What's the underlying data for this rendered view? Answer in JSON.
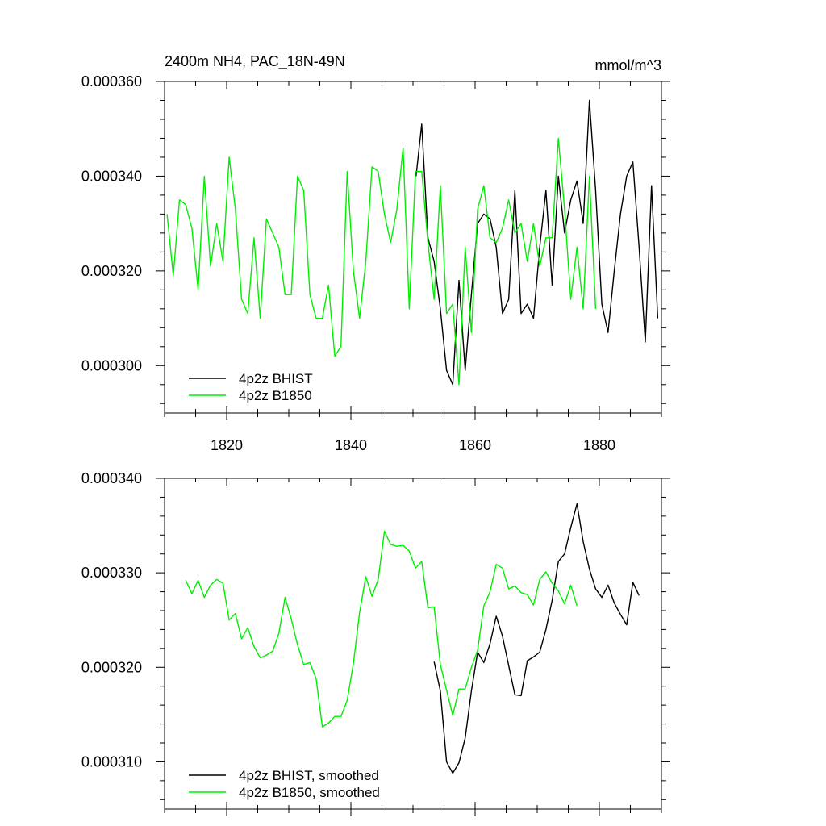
{
  "colors": {
    "bhist": "#000000",
    "b1850": "#00ee00",
    "axis": "#000000",
    "background": "#ffffff"
  },
  "chart_data": [
    {
      "type": "line",
      "title": "2400m NH4, PAC_18N-49N",
      "units": "mmol/m^3",
      "xlim": [
        1810,
        1890
      ],
      "ylim": [
        0.00029,
        0.00036
      ],
      "x_ticks": [
        1820,
        1840,
        1860,
        1880
      ],
      "x_tick_labels": [
        "1820",
        "1840",
        "1860",
        "1880"
      ],
      "y_ticks": [
        0.0003,
        0.00032,
        0.00034,
        0.00036
      ],
      "y_tick_labels": [
        "0.000300",
        "0.000320",
        "0.000340",
        "0.000360"
      ],
      "grid": false,
      "legend_position": "bottom-left",
      "series": [
        {
          "name": "4p2z BHIST",
          "color": "#000000",
          "x": [
            1850.5,
            1851.4,
            1852.4,
            1853.4,
            1854.4,
            1855.4,
            1856.4,
            1857.4,
            1858.4,
            1859.4,
            1860.4,
            1861.4,
            1862.4,
            1863.4,
            1864.4,
            1865.4,
            1866.4,
            1867.4,
            1868.4,
            1869.4,
            1870.4,
            1871.4,
            1872.4,
            1873.4,
            1874.4,
            1875.4,
            1876.4,
            1877.4,
            1878.4,
            1879.4,
            1880.4,
            1881.4,
            1882.4,
            1883.4,
            1884.4,
            1885.4,
            1886.4,
            1887.4,
            1888.4,
            1889.4
          ],
          "y": [
            0.00034,
            0.000351,
            0.000327,
            0.000322,
            0.000312,
            0.000299,
            0.000296,
            0.000318,
            0.000299,
            0.000315,
            0.00033,
            0.000332,
            0.000331,
            0.000325,
            0.000311,
            0.000314,
            0.000337,
            0.000311,
            0.000313,
            0.00031,
            0.000325,
            0.000337,
            0.000317,
            0.00034,
            0.000328,
            0.000335,
            0.000339,
            0.00033,
            0.000356,
            0.000337,
            0.000313,
            0.000307,
            0.00032,
            0.000332,
            0.00034,
            0.000343,
            0.000325,
            0.000305,
            0.000338,
            0.00031
          ]
        },
        {
          "name": "4p2z B1850",
          "color": "#00ee00",
          "x": [
            1810.4,
            1811.4,
            1812.4,
            1813.4,
            1814.4,
            1815.4,
            1816.4,
            1817.4,
            1818.4,
            1819.4,
            1820.4,
            1821.4,
            1822.4,
            1823.4,
            1824.4,
            1825.4,
            1826.4,
            1827.4,
            1828.4,
            1829.4,
            1830.4,
            1831.4,
            1832.4,
            1833.4,
            1834.4,
            1835.4,
            1836.4,
            1837.4,
            1838.4,
            1839.4,
            1840.4,
            1841.4,
            1842.4,
            1843.4,
            1844.4,
            1845.4,
            1846.4,
            1847.4,
            1848.4,
            1849.4,
            1850.4,
            1851.4,
            1852.4,
            1853.4,
            1854.4,
            1855.4,
            1856.4,
            1857.4,
            1858.4,
            1859.4,
            1860.4,
            1861.4,
            1862.4,
            1863.4,
            1864.4,
            1865.4,
            1866.4,
            1867.4,
            1868.4,
            1869.4,
            1870.4,
            1871.4,
            1872.4,
            1873.4,
            1874.4,
            1875.4,
            1876.4,
            1877.4,
            1878.4,
            1879.4
          ],
          "y": [
            0.000332,
            0.000319,
            0.000335,
            0.000334,
            0.000329,
            0.000316,
            0.00034,
            0.000321,
            0.00033,
            0.000322,
            0.000344,
            0.000333,
            0.000314,
            0.000311,
            0.000327,
            0.00031,
            0.000331,
            0.000328,
            0.000325,
            0.000315,
            0.000315,
            0.00034,
            0.000337,
            0.000315,
            0.00031,
            0.00031,
            0.000317,
            0.000302,
            0.000304,
            0.000341,
            0.00032,
            0.00031,
            0.000322,
            0.000342,
            0.000341,
            0.000332,
            0.000326,
            0.000333,
            0.000346,
            0.000312,
            0.000341,
            0.000341,
            0.000326,
            0.000314,
            0.000338,
            0.000311,
            0.000313,
            0.000296,
            0.000325,
            0.000307,
            0.000333,
            0.000338,
            0.000327,
            0.000326,
            0.000329,
            0.000335,
            0.000328,
            0.00033,
            0.000322,
            0.00033,
            0.000321,
            0.000327,
            0.000327,
            0.000348,
            0.000333,
            0.000314,
            0.000325,
            0.000312,
            0.00034,
            0.000312
          ]
        }
      ]
    },
    {
      "type": "line",
      "xlim": [
        1810,
        1890
      ],
      "ylim": [
        0.000305,
        0.00034
      ],
      "x_ticks": [
        1820,
        1840,
        1860,
        1880
      ],
      "y_ticks": [
        0.00031,
        0.00032,
        0.00033,
        0.00034
      ],
      "y_tick_labels": [
        "0.000310",
        "0.000320",
        "0.000330",
        "0.000340"
      ],
      "grid": false,
      "legend_position": "bottom-left",
      "series": [
        {
          "name": "4p2z BHIST, smoothed",
          "color": "#000000",
          "x": [
            1853.4,
            1854.4,
            1855.4,
            1856.4,
            1857.4,
            1858.4,
            1859.4,
            1860.4,
            1861.4,
            1862.4,
            1863.4,
            1864.4,
            1865.4,
            1866.4,
            1867.4,
            1868.4,
            1869.4,
            1870.4,
            1871.4,
            1872.4,
            1873.4,
            1874.4,
            1875.4,
            1876.4,
            1877.4,
            1878.4,
            1879.4,
            1880.4,
            1881.4,
            1882.4,
            1883.4,
            1884.4,
            1885.4,
            1886.4
          ],
          "y": [
            0.0003206,
            0.0003175,
            0.00031,
            0.0003088,
            0.0003099,
            0.0003125,
            0.0003175,
            0.0003216,
            0.0003205,
            0.0003225,
            0.0003254,
            0.0003233,
            0.0003202,
            0.0003171,
            0.000317,
            0.0003207,
            0.0003211,
            0.0003216,
            0.000324,
            0.0003271,
            0.0003312,
            0.000332,
            0.0003348,
            0.0003373,
            0.0003333,
            0.0003304,
            0.0003283,
            0.0003274,
            0.0003287,
            0.0003268,
            0.0003256,
            0.0003245,
            0.000329,
            0.0003276
          ]
        },
        {
          "name": "4p2z B1850, smoothed",
          "color": "#00ee00",
          "x": [
            1813.4,
            1814.4,
            1815.4,
            1816.4,
            1817.4,
            1818.4,
            1819.4,
            1820.4,
            1821.4,
            1822.4,
            1823.4,
            1824.4,
            1825.4,
            1826.4,
            1827.4,
            1828.4,
            1829.4,
            1830.4,
            1831.4,
            1832.4,
            1833.4,
            1834.4,
            1835.4,
            1836.4,
            1837.4,
            1838.4,
            1839.4,
            1840.4,
            1841.4,
            1842.4,
            1843.4,
            1844.4,
            1845.4,
            1846.4,
            1847.4,
            1848.4,
            1849.4,
            1850.4,
            1851.4,
            1852.4,
            1853.4,
            1854.4,
            1855.4,
            1856.4,
            1857.4,
            1858.4,
            1859.4,
            1860.4,
            1861.4,
            1862.4,
            1863.4,
            1864.4,
            1865.4,
            1866.4,
            1867.4,
            1868.4,
            1869.4,
            1870.4,
            1871.4,
            1872.4,
            1873.4,
            1874.4,
            1875.4,
            1876.4
          ],
          "y": [
            0.0003292,
            0.0003278,
            0.0003292,
            0.0003274,
            0.0003287,
            0.0003293,
            0.0003289,
            0.000325,
            0.0003257,
            0.000323,
            0.0003242,
            0.0003222,
            0.000321,
            0.0003213,
            0.0003217,
            0.0003236,
            0.0003274,
            0.0003251,
            0.0003224,
            0.0003203,
            0.0003205,
            0.0003188,
            0.0003137,
            0.0003141,
            0.0003148,
            0.0003148,
            0.0003165,
            0.0003204,
            0.0003258,
            0.0003296,
            0.0003275,
            0.0003293,
            0.0003344,
            0.000333,
            0.0003328,
            0.0003329,
            0.0003323,
            0.0003305,
            0.0003312,
            0.0003263,
            0.0003264,
            0.0003203,
            0.0003176,
            0.0003149,
            0.0003177,
            0.0003177,
            0.00032,
            0.0003218,
            0.0003265,
            0.000328,
            0.0003309,
            0.0003305,
            0.0003283,
            0.0003286,
            0.0003279,
            0.0003277,
            0.0003266,
            0.0003293,
            0.0003301,
            0.0003289,
            0.0003281,
            0.0003267,
            0.0003287,
            0.0003265
          ]
        }
      ]
    }
  ]
}
